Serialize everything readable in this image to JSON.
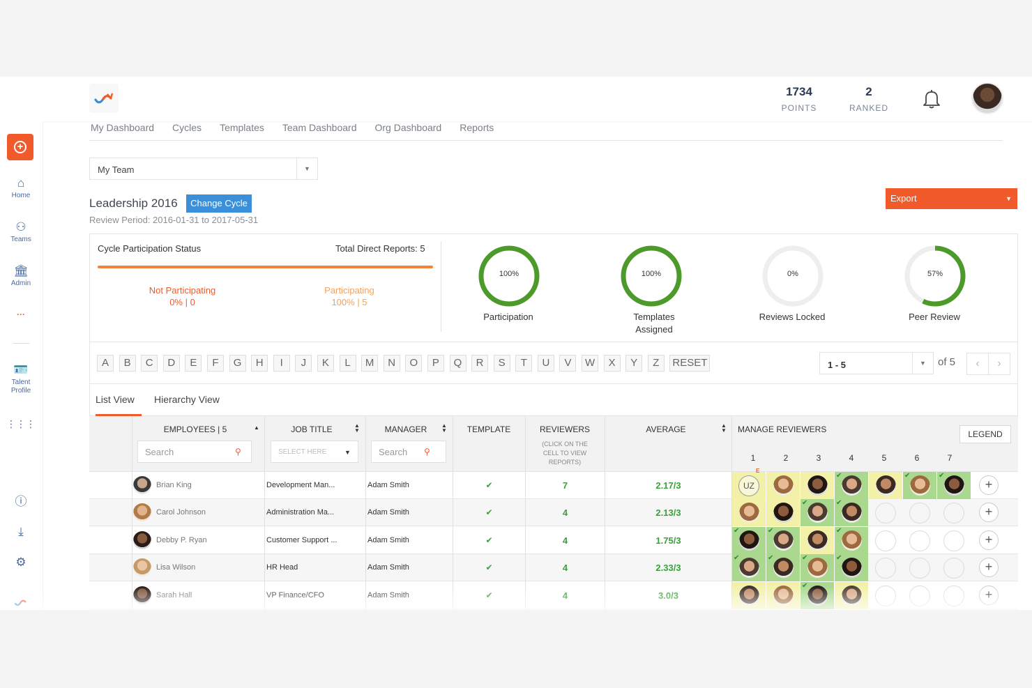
{
  "header": {
    "points_value": "1734",
    "points_label": "POINTS",
    "ranked_value": "2",
    "ranked_label": "RANKED",
    "logo_icon": "cycle-arrows-logo-icon",
    "bell_icon": "bell-icon"
  },
  "sidebar": {
    "items": [
      {
        "label": "Home",
        "icon": "home-icon"
      },
      {
        "label": "Teams",
        "icon": "teams-icon"
      },
      {
        "label": "Admin",
        "icon": "admin-icon"
      },
      {
        "label": "···",
        "icon": "more-icon"
      },
      {
        "label": "Talent Profile",
        "icon": "talent-profile-icon"
      }
    ]
  },
  "nav": [
    "My Dashboard",
    "Cycles",
    "Templates",
    "Team Dashboard",
    "Org Dashboard",
    "Reports"
  ],
  "team_select": "My Team",
  "cycle": {
    "title": "Leadership 2016",
    "change_label": "Change Cycle",
    "review_period": "Review Period: 2016-01-31 to 2017-05-31",
    "export_label": "Export"
  },
  "status": {
    "title": "Cycle Participation Status",
    "total_direct": "Total Direct Reports: 5",
    "not_participating_label": "Not Participating",
    "not_participating_value": "0% | 0",
    "participating_label": "Participating",
    "participating_value": "100% | 5",
    "rings": [
      {
        "pct": "100%",
        "value": 100,
        "label": "Participation"
      },
      {
        "pct": "100%",
        "value": 100,
        "label": "Templates Assigned"
      },
      {
        "pct": "0%",
        "value": 0,
        "label": "Reviews Locked"
      },
      {
        "pct": "57%",
        "value": 57,
        "label": "Peer Review"
      }
    ]
  },
  "alphabet": [
    "A",
    "B",
    "C",
    "D",
    "E",
    "F",
    "G",
    "H",
    "I",
    "J",
    "K",
    "L",
    "M",
    "N",
    "O",
    "P",
    "Q",
    "R",
    "S",
    "T",
    "U",
    "V",
    "W",
    "X",
    "Y",
    "Z"
  ],
  "reset_label": "RESET",
  "pagination": {
    "range": "1 - 5",
    "of": "of 5"
  },
  "views": {
    "list": "List View",
    "hierarchy": "Hierarchy View"
  },
  "table": {
    "employees_header": "EMPLOYEES | 5",
    "job_title_header": "JOB TITLE",
    "manager_header": "MANAGER",
    "template_header": "TEMPLATE",
    "reviewers_header": "REVIEWERS",
    "reviewers_note": "(CLICK ON THE CELL TO VIEW REPORTS)",
    "average_header": "AVERAGE",
    "manage_header": "MANAGE REVIEWERS",
    "legend_label": "LEGEND",
    "search_placeholder": "Search",
    "select_placeholder": "SELECT HERE",
    "reviewer_columns": [
      "1",
      "2",
      "3",
      "4",
      "5",
      "6",
      "7"
    ],
    "rows": [
      {
        "name": "Brian King",
        "job": "Development Man...",
        "manager": "Adam Smith",
        "reviewers": "7",
        "average": "2.17/3",
        "slots": [
          "uz-y",
          "face-y",
          "face-y",
          "face-g",
          "face-y",
          "face-g",
          "face-g"
        ]
      },
      {
        "name": "Carol Johnson",
        "job": "Administration Ma...",
        "manager": "Adam Smith",
        "reviewers": "4",
        "average": "2.13/3",
        "slots": [
          "face-y",
          "face-y",
          "face-g",
          "face-g",
          "empty",
          "empty",
          "empty"
        ]
      },
      {
        "name": "Debby P. Ryan",
        "job": "Customer Support ...",
        "manager": "Adam Smith",
        "reviewers": "4",
        "average": "1.75/3",
        "slots": [
          "face-g",
          "face-g",
          "face-y",
          "face-g",
          "empty",
          "empty",
          "empty"
        ]
      },
      {
        "name": "Lisa Wilson",
        "job": "HR Head",
        "manager": "Adam Smith",
        "reviewers": "4",
        "average": "2.33/3",
        "slots": [
          "face-g",
          "face-g",
          "face-g",
          "face-g",
          "empty",
          "empty",
          "empty"
        ]
      },
      {
        "name": "Sarah Hall",
        "job": "VP Finance/CFO",
        "manager": "Adam Smith",
        "reviewers": "4",
        "average": "3.0/3",
        "slots": [
          "face-y",
          "face-y",
          "face-g",
          "face-y",
          "empty",
          "empty",
          "empty"
        ]
      }
    ],
    "uz_initials": "UZ",
    "uz_badge": "E"
  },
  "colors": {
    "accent": "#f15a2b",
    "blue": "#3a8fd8",
    "ring_green": "#4c9a2a",
    "ring_track": "#eeeeee",
    "cell_yellow": "#f3f1a8",
    "cell_green": "#a9d88e"
  }
}
